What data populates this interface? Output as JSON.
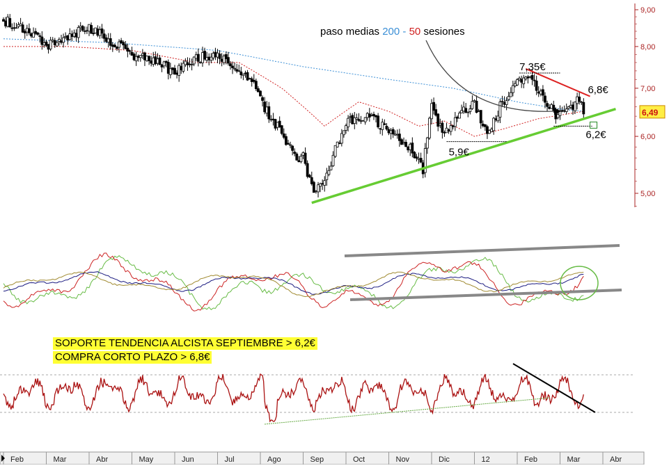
{
  "chart_data": [
    {
      "type": "candlestick",
      "panel": "price",
      "y_scale": "log",
      "ylim": [
        4.75,
        9.2
      ],
      "y_ticks": [
        "9,00",
        "8,00",
        "7,00",
        "6,00",
        "5,00"
      ],
      "y_tick_values": [
        9.0,
        8.0,
        7.0,
        6.0,
        5.0
      ],
      "x_tick_labels": [
        "Feb",
        "Mar",
        "Abr",
        "May",
        "Jun",
        "Jul",
        "Ago",
        "Sep",
        "Oct",
        "Nov",
        "Dic",
        "12",
        "Feb",
        "Mar",
        "Abr"
      ],
      "last_price": 6.49,
      "last_price_label": "6,49",
      "close_path": [
        {
          "m": 0,
          "v": 8.7
        },
        {
          "m": 0.5,
          "v": 8.5
        },
        {
          "m": 1,
          "v": 8.0
        },
        {
          "m": 1.5,
          "v": 8.3
        },
        {
          "m": 2.0,
          "v": 8.5
        },
        {
          "m": 2.6,
          "v": 8.1
        },
        {
          "m": 3.0,
          "v": 7.8
        },
        {
          "m": 3.5,
          "v": 7.6
        },
        {
          "m": 4.0,
          "v": 7.4
        },
        {
          "m": 4.5,
          "v": 7.7
        },
        {
          "m": 5.0,
          "v": 7.8
        },
        {
          "m": 5.3,
          "v": 7.6
        },
        {
          "m": 5.8,
          "v": 7.2
        },
        {
          "m": 6.2,
          "v": 6.4
        },
        {
          "m": 6.5,
          "v": 6.1
        },
        {
          "m": 6.8,
          "v": 5.6
        },
        {
          "m": 7.0,
          "v": 5.6
        },
        {
          "m": 7.25,
          "v": 4.95
        },
        {
          "m": 7.6,
          "v": 5.4
        },
        {
          "m": 8.0,
          "v": 6.3
        },
        {
          "m": 8.5,
          "v": 6.4
        },
        {
          "m": 9.0,
          "v": 6.1
        },
        {
          "m": 9.5,
          "v": 5.8
        },
        {
          "m": 9.8,
          "v": 5.4
        },
        {
          "m": 10.0,
          "v": 6.6
        },
        {
          "m": 10.3,
          "v": 6.0
        },
        {
          "m": 10.7,
          "v": 6.5
        },
        {
          "m": 11.0,
          "v": 6.7
        },
        {
          "m": 11.3,
          "v": 6.0
        },
        {
          "m": 11.6,
          "v": 6.6
        },
        {
          "m": 12.0,
          "v": 7.1
        },
        {
          "m": 12.3,
          "v": 7.3
        },
        {
          "m": 12.6,
          "v": 6.8
        },
        {
          "m": 12.9,
          "v": 6.4
        },
        {
          "m": 13.2,
          "v": 6.5
        },
        {
          "m": 13.4,
          "v": 6.8
        },
        {
          "m": 13.55,
          "v": 6.49
        }
      ],
      "sma_200_path": [
        {
          "m": 0,
          "v": 8.2
        },
        {
          "m": 2.5,
          "v": 8.1
        },
        {
          "m": 5.0,
          "v": 7.9
        },
        {
          "m": 7.0,
          "v": 7.5
        },
        {
          "m": 9.0,
          "v": 7.2
        },
        {
          "m": 10.5,
          "v": 7.0
        },
        {
          "m": 12.0,
          "v": 6.7
        },
        {
          "m": 13.0,
          "v": 6.55
        },
        {
          "m": 13.55,
          "v": 6.5
        }
      ],
      "sma_50_path": [
        {
          "m": 0,
          "v": 8.0
        },
        {
          "m": 1.5,
          "v": 8.0
        },
        {
          "m": 3.0,
          "v": 7.9
        },
        {
          "m": 4.5,
          "v": 7.6
        },
        {
          "m": 5.5,
          "v": 7.6
        },
        {
          "m": 6.5,
          "v": 7.0
        },
        {
          "m": 7.5,
          "v": 6.2
        },
        {
          "m": 8.3,
          "v": 6.7
        },
        {
          "m": 9.0,
          "v": 6.5
        },
        {
          "m": 9.7,
          "v": 6.2
        },
        {
          "m": 10.3,
          "v": 6.3
        },
        {
          "m": 11.0,
          "v": 6.0
        },
        {
          "m": 11.7,
          "v": 6.15
        },
        {
          "m": 12.5,
          "v": 6.35
        },
        {
          "m": 13.55,
          "v": 6.5
        }
      ],
      "support_trendline": [
        {
          "m": 7.2,
          "v": 4.85
        },
        {
          "m": 14.3,
          "v": 6.55
        }
      ],
      "resistance_trendline": [
        {
          "m": 12.2,
          "v": 7.45
        },
        {
          "m": 13.7,
          "v": 6.82
        }
      ],
      "annotations": [
        {
          "text": "paso medias",
          "price_at": null
        },
        {
          "text": "7,35€",
          "value": 7.35
        },
        {
          "text": "6,8€",
          "value": 6.8
        },
        {
          "text": "5,9€",
          "value": 5.9
        },
        {
          "text": "6,2€",
          "value": 6.2
        }
      ],
      "legend_text": {
        "prefix": "paso medias ",
        "a": "200",
        "sep": " - ",
        "b": "50",
        "suffix": " sesiones",
        "color_a": "#3b8fd6",
        "color_b": "#d02020"
      },
      "colors": {
        "candle_up": "#ffffff",
        "candle_down": "#000000",
        "sma_200": "#3b8fd6",
        "sma_50": "#d02020",
        "support": "#66cc33",
        "resistance": "#dd2222",
        "axis_text": "#aa2222"
      }
    },
    {
      "type": "line",
      "panel": "oscillator",
      "series": [
        {
          "color": "#66bb44"
        },
        {
          "color": "#cc2222"
        },
        {
          "color": "#1a1a80"
        },
        {
          "color": "#a08a30"
        }
      ],
      "channel_color": "#888888",
      "circle_color": "#66bb44"
    },
    {
      "type": "line",
      "panel": "momentum",
      "series": [
        {
          "color": "#aa1111"
        }
      ],
      "reference_lines": "dashed",
      "support_color": "#66aa44",
      "resistance_color": "#000000"
    }
  ],
  "callouts": [
    "SOPORTE TENDENCIA ALCISTA SEPTIEMBRE > 6,2€",
    "COMPRA CORTO PLAZO > 6,8€"
  ]
}
